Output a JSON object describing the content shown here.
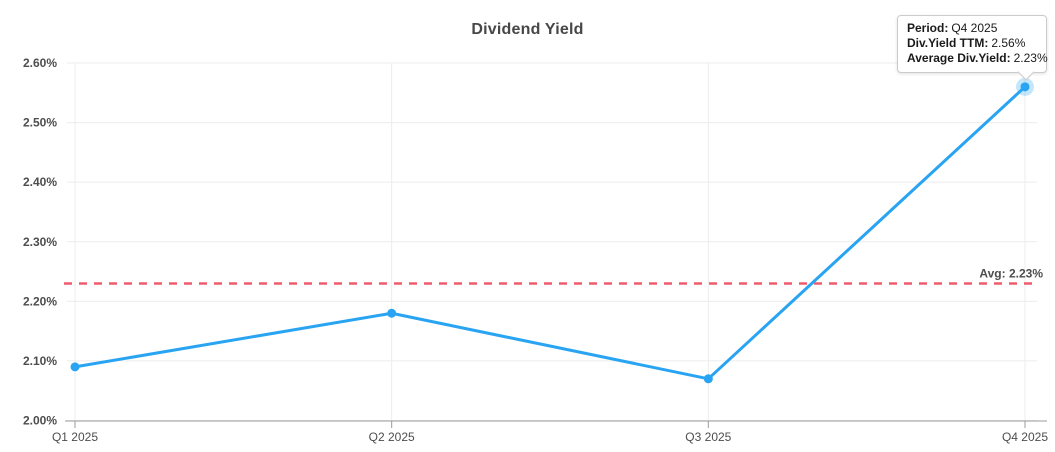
{
  "title": "Dividend Yield",
  "colors": {
    "accent_blue": "#29a4f2",
    "point_halo": "rgba(41,164,242,0.28)",
    "avg_red": "#ef5b6e",
    "grid": "#ececec",
    "axis": "#9b9b9b",
    "label_text": "#4d4d4d",
    "title_text": "#474747",
    "tooltip_border": "#cccccc",
    "tooltip_bg": "#ffffff"
  },
  "chart_data": {
    "type": "line",
    "title": "Dividend Yield",
    "categories": [
      "Q1 2025",
      "Q2 2025",
      "Q3 2025",
      "Q4 2025"
    ],
    "series": [
      {
        "name": "Div.Yield TTM",
        "values": [
          2.09,
          2.18,
          2.07,
          2.56
        ]
      }
    ],
    "average": 2.23,
    "average_label": "Avg: 2.23%",
    "ylim": [
      2.0,
      2.6
    ],
    "ytick_step": 0.1,
    "ytick_labels": [
      "2.00%",
      "2.10%",
      "2.20%",
      "2.30%",
      "2.40%",
      "2.50%",
      "2.60%"
    ],
    "grid": true,
    "legend": "none",
    "hovered_index": 3
  },
  "tooltip": {
    "rows": [
      {
        "label": "Period:",
        "value": "Q4 2025"
      },
      {
        "label": "Div.Yield TTM:",
        "value": "2.56%"
      },
      {
        "label": "Average Div.Yield:",
        "value": "2.23%"
      }
    ]
  }
}
